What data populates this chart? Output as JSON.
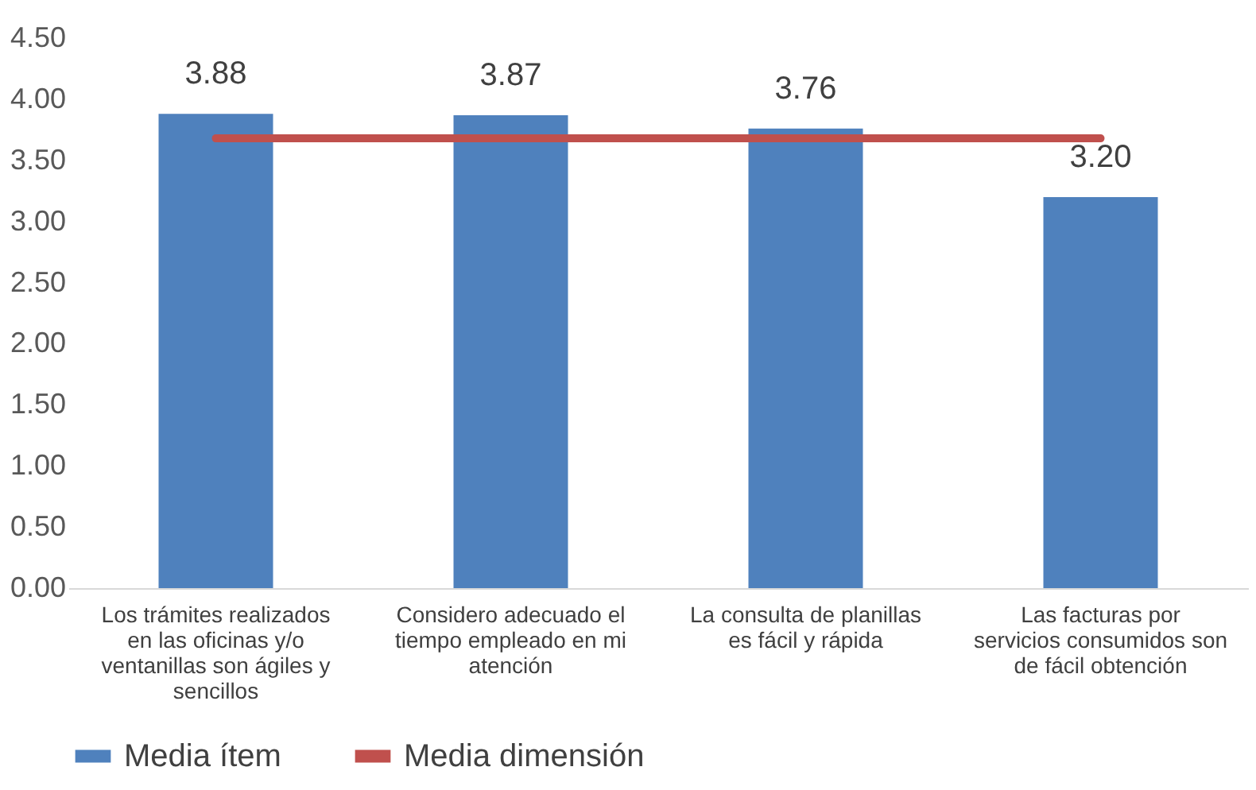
{
  "chart_data": {
    "type": "bar",
    "categories": [
      "Los trámites realizados en las oficinas y/o ventanillas son ágiles y sencillos",
      "Considero adecuado el tiempo empleado en mi atención",
      "La consulta de planillas es fácil y rápida",
      "Las facturas por servicios consumidos son de fácil obtención"
    ],
    "series": [
      {
        "name": "Media ítem",
        "type": "bar",
        "color": "#4f81bd",
        "values": [
          3.88,
          3.87,
          3.76,
          3.2
        ],
        "value_labels": [
          "3.88",
          "3.87",
          "3.76",
          "3.20"
        ]
      },
      {
        "name": "Media dimensión",
        "type": "line",
        "color": "#c0504d",
        "values": [
          3.68,
          3.68,
          3.68,
          3.68
        ]
      }
    ],
    "ylim": [
      0,
      4.5
    ],
    "yticks": [
      {
        "value": 0,
        "label": "0.00"
      },
      {
        "value": 0.5,
        "label": "0.50"
      },
      {
        "value": 1,
        "label": "1.00"
      },
      {
        "value": 1.5,
        "label": "1.50"
      },
      {
        "value": 2,
        "label": "2.00"
      },
      {
        "value": 2.5,
        "label": "2.50"
      },
      {
        "value": 3,
        "label": "3.00"
      },
      {
        "value": 3.5,
        "label": "3.50"
      },
      {
        "value": 4,
        "label": "4.00"
      },
      {
        "value": 4.5,
        "label": "4.50"
      }
    ],
    "grid": false,
    "legend": "bottom",
    "marker": "none"
  }
}
